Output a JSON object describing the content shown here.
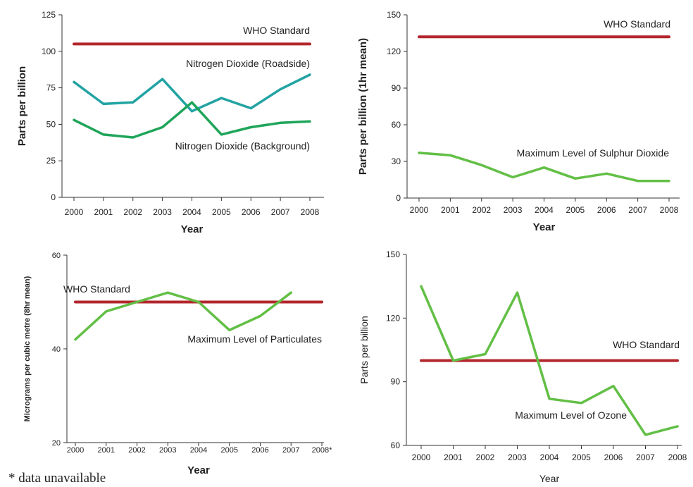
{
  "footnote": "* data unavailable",
  "colors": {
    "who": "#b3272d",
    "no2_roadside": "#22a3a3",
    "no2_background": "#1fa55a",
    "green": "#62bf45",
    "axis": "#333333"
  },
  "chart_data": [
    {
      "type": "line",
      "title": "",
      "xlabel": "Year",
      "ylabel": "Parts per billion",
      "x": [
        "2000",
        "2001",
        "2002",
        "2003",
        "2004",
        "2005",
        "2006",
        "2007",
        "2008"
      ],
      "yticks": [
        "0",
        "25",
        "50",
        "75",
        "100",
        "125"
      ],
      "ylim": [
        0,
        125
      ],
      "series": [
        {
          "name": "WHO Standard",
          "values": [
            105,
            105,
            105,
            105,
            105,
            105,
            105,
            105,
            105
          ],
          "color": "who"
        },
        {
          "name": "Nitrogen Dioxide (Roadside)",
          "values": [
            79,
            64,
            65,
            81,
            59,
            68,
            61,
            74,
            84
          ],
          "color": "no2_roadside"
        },
        {
          "name": "Nitrogen Dioxide (Background)",
          "values": [
            53,
            43,
            41,
            48,
            65,
            43,
            48,
            51,
            52
          ],
          "color": "no2_background"
        }
      ]
    },
    {
      "type": "line",
      "title": "",
      "xlabel": "Year",
      "ylabel": "Parts per billion (1hr mean)",
      "x": [
        "2000",
        "2001",
        "2002",
        "2003",
        "2004",
        "2005",
        "2006",
        "2007",
        "2008"
      ],
      "yticks": [
        "0",
        "30",
        "60",
        "90",
        "120",
        "150"
      ],
      "ylim": [
        0,
        150
      ],
      "series": [
        {
          "name": "WHO Standard",
          "values": [
            132,
            132,
            132,
            132,
            132,
            132,
            132,
            132,
            132
          ],
          "color": "who"
        },
        {
          "name": "Maximum Level of Sulphur Dioxide",
          "values": [
            37,
            35,
            27,
            17,
            25,
            16,
            20,
            14,
            14
          ],
          "color": "green"
        }
      ]
    },
    {
      "type": "line",
      "title": "",
      "xlabel": "Year",
      "ylabel": "Micrograms per cubic metre (8hr mean)",
      "x": [
        "2000",
        "2001",
        "2002",
        "2003",
        "2004",
        "2005",
        "2006",
        "2007",
        "2008*"
      ],
      "yticks": [
        "20",
        "40",
        "60"
      ],
      "ylim": [
        20,
        60
      ],
      "series": [
        {
          "name": "WHO Standard",
          "values": [
            50,
            50,
            50,
            50,
            50,
            50,
            50,
            50,
            50
          ],
          "color": "who"
        },
        {
          "name": "Maximum Level of Particulates",
          "values": [
            42,
            48,
            50,
            52,
            50,
            44,
            47,
            52,
            null
          ],
          "color": "green"
        }
      ]
    },
    {
      "type": "line",
      "title": "",
      "xlabel": "Year",
      "ylabel": "Parts per billion",
      "x": [
        "2000",
        "2001",
        "2002",
        "2003",
        "2004",
        "2005",
        "2006",
        "2007",
        "2008"
      ],
      "yticks": [
        "60",
        "90",
        "120",
        "150"
      ],
      "ylim": [
        60,
        150
      ],
      "series": [
        {
          "name": "WHO Standard",
          "values": [
            100,
            100,
            100,
            100,
            100,
            100,
            100,
            100,
            100
          ],
          "color": "who"
        },
        {
          "name": "Maximum Level of Ozone",
          "values": [
            135,
            100,
            103,
            132,
            82,
            80,
            88,
            65,
            69
          ],
          "color": "green"
        }
      ]
    }
  ]
}
